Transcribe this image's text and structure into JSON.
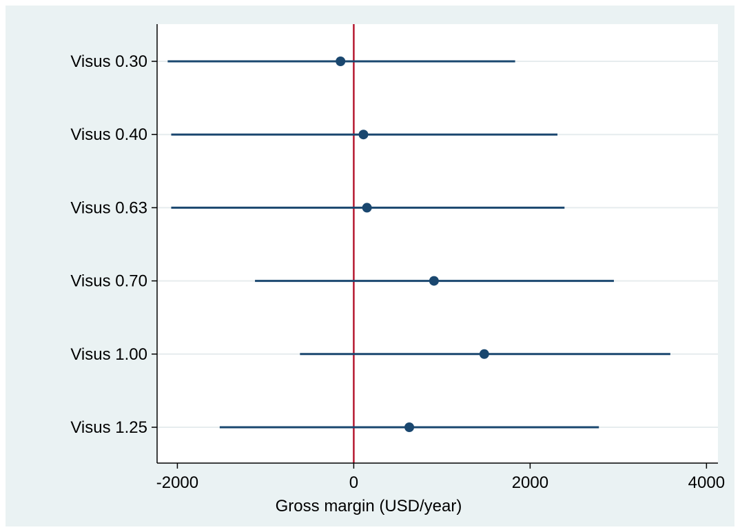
{
  "chart_data": {
    "type": "scatter",
    "subtype": "coefficient-plot",
    "title": "",
    "xlabel": "Gross margin (USD/year)",
    "ylabel": "",
    "xlim": [
      -2230,
      4130
    ],
    "xticks": [
      -2000,
      0,
      2000,
      4000
    ],
    "reference_line_x": 0,
    "grid": "horizontal",
    "categories": [
      "Visus 0.30",
      "Visus 0.40",
      "Visus 0.63",
      "Visus 0.70",
      "Visus 1.00",
      "Visus 1.25"
    ],
    "estimates": [
      -150,
      110,
      150,
      910,
      1480,
      630
    ],
    "ci_low": [
      -2110,
      -2070,
      -2070,
      -1120,
      -610,
      -1520
    ],
    "ci_high": [
      1830,
      2310,
      2390,
      2950,
      3590,
      2780
    ],
    "colors": {
      "marker": "#1a476f",
      "ci_line": "#1a476f",
      "reference_line": "#b5172f",
      "grid": "#e6ecee",
      "plot_bg": "#ffffff",
      "frame_bg": "#eaf2f3"
    }
  }
}
